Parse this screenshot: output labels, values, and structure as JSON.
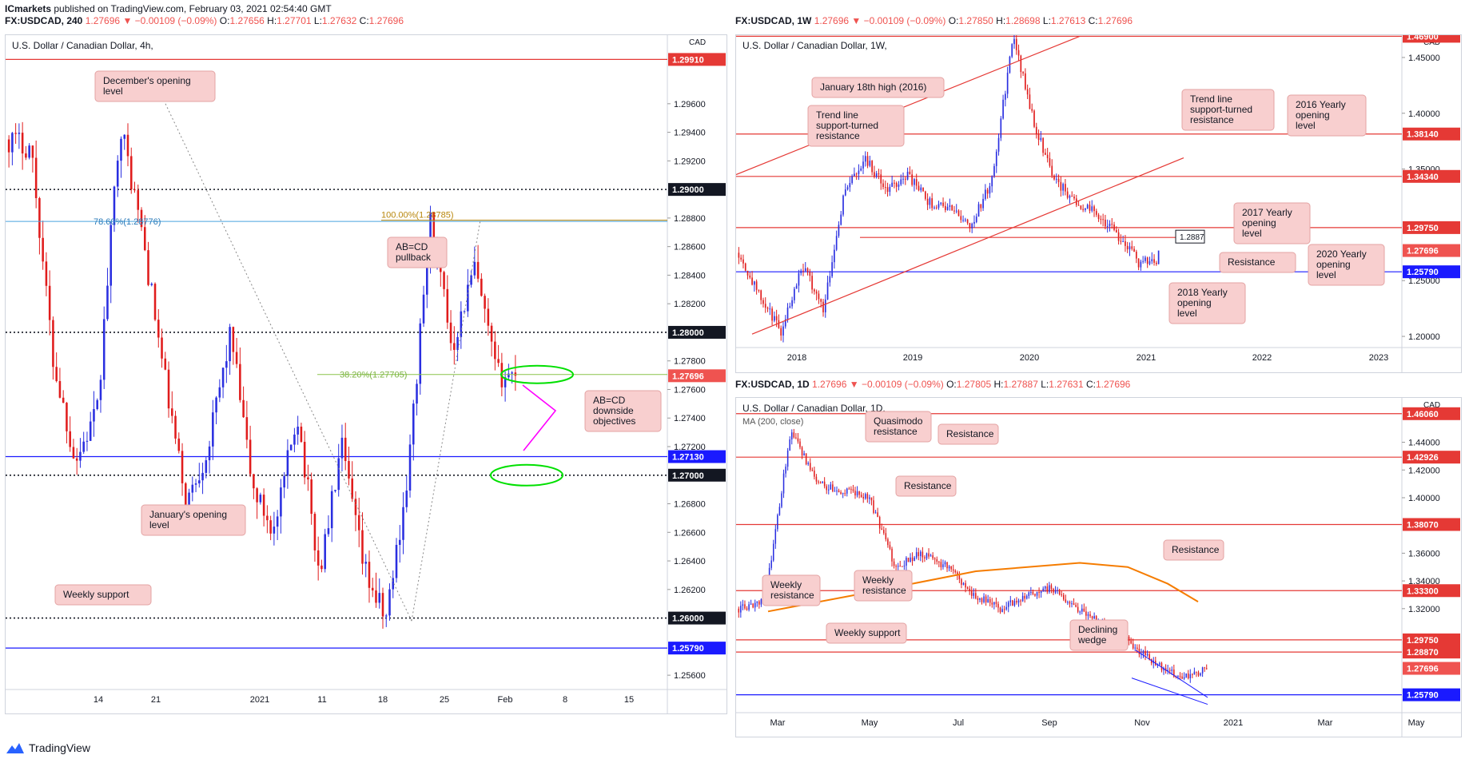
{
  "header": {
    "publisher": "ICmarkets",
    "published_text": "published on TradingView.com, February 03, 2021 02:54:40 GMT"
  },
  "footer": {
    "brand": "TradingView"
  },
  "colors": {
    "up": "#2a2fe0",
    "down": "#e01c1c",
    "level_red": "#e53935",
    "level_blue": "#1a1aff",
    "fib": "#8bc34a",
    "note_bg": "#f8cfcf",
    "ma": "#f57c00"
  },
  "chart_data": [
    {
      "type": "candlestick",
      "id": "h4",
      "symbol_line": {
        "symbol": "FX:USDCAD, 240",
        "price": "1.27696",
        "change": "−0.00109 (−0.09%)",
        "o_label": "O:",
        "o": "1.27656",
        "h_label": "H:",
        "h": "1.27701",
        "l_label": "L:",
        "l": "1.27632",
        "c_label": "C:",
        "c": "1.27696"
      },
      "title": "U.S. Dollar / Canadian Dollar, 4h,",
      "currency": "CAD",
      "ylim": [
        1.255,
        1.3008
      ],
      "y_ticks": [
        "1.29600",
        "1.29400",
        "1.29200",
        "1.28800",
        "1.28600",
        "1.28400",
        "1.28200",
        "1.27800",
        "1.27600",
        "1.27400",
        "1.27200",
        "1.26800",
        "1.26600",
        "1.26400",
        "1.26200",
        "1.25600"
      ],
      "x_ticks": [
        "14",
        "21",
        "2021",
        "11",
        "18",
        "25",
        "Feb",
        "8",
        "15"
      ],
      "levels": [
        {
          "value": 1.2991,
          "label": "1.29910",
          "style": "red"
        },
        {
          "value": 1.29,
          "label": "1.29000",
          "style": "dotted"
        },
        {
          "value": 1.28,
          "label": "1.28000",
          "style": "dotted"
        },
        {
          "value": 1.27696,
          "label": "1.27696",
          "style": "price"
        },
        {
          "value": 1.2713,
          "label": "1.27130",
          "style": "blue"
        },
        {
          "value": 1.27,
          "label": "1.27000",
          "style": "dotted"
        },
        {
          "value": 1.26,
          "label": "1.26000",
          "style": "dotted"
        },
        {
          "value": 1.2579,
          "label": "1.25790",
          "style": "blue"
        }
      ],
      "fib_labels": [
        {
          "text": "78.60%(1.28776)",
          "value": 1.28776
        },
        {
          "text": "100.00%(1.28785)",
          "value": 1.28785
        },
        {
          "text": "38.20%(1.27705)",
          "value": 1.27705
        }
      ],
      "annotations": [
        "December's opening level",
        "AB=CD pullback",
        "AB=CD downside objectives",
        "January's opening level",
        "Weekly support"
      ]
    },
    {
      "type": "candlestick",
      "id": "w1",
      "symbol_line": {
        "symbol": "FX:USDCAD, 1W",
        "price": "1.27696",
        "change": "−0.00109 (−0.09%)",
        "o_label": "O:",
        "o": "1.27850",
        "h_label": "H:",
        "h": "1.28698",
        "l_label": "L:",
        "l": "1.27613",
        "c_label": "C:",
        "c": "1.27696"
      },
      "title": "U.S. Dollar / Canadian Dollar, 1W,",
      "currency": "CAD",
      "ylim": [
        1.19,
        1.47
      ],
      "y_ticks": [
        "1.45000",
        "1.40000",
        "1.35000",
        "1.25000",
        "1.20000"
      ],
      "x_ticks": [
        "2018",
        "2019",
        "2020",
        "2021",
        "2022",
        "2023"
      ],
      "levels": [
        {
          "value": 1.469,
          "label": "1.46900",
          "style": "red"
        },
        {
          "value": 1.3814,
          "label": "1.38140",
          "style": "red"
        },
        {
          "value": 1.3434,
          "label": "1.34340",
          "style": "red"
        },
        {
          "value": 1.2975,
          "label": "1.29750",
          "style": "red"
        },
        {
          "value": 1.27696,
          "label": "1.27696",
          "style": "price"
        },
        {
          "value": 1.2579,
          "label": "1.25790",
          "style": "blue"
        }
      ],
      "box_label": "1.2887",
      "annotations": [
        "January 18th high (2016)",
        "Trend line support-turned resistance",
        "Trend line support-turned resistance",
        "2016 Yearly opening level",
        "2017 Yearly opening level",
        "Resistance",
        "2020 Yearly opening level",
        "2018 Yearly opening level"
      ]
    },
    {
      "type": "candlestick",
      "id": "d1",
      "symbol_line": {
        "symbol": "FX:USDCAD, 1D",
        "price": "1.27696",
        "change": "−0.00109 (−0.09%)",
        "o_label": "O:",
        "o": "1.27805",
        "h_label": "H:",
        "h": "1.27887",
        "l_label": "L:",
        "l": "1.27631",
        "c_label": "C:",
        "c": "1.27696"
      },
      "title": "U.S. Dollar / Canadian Dollar, 1D,",
      "indicator": "MA (200, close)",
      "currency": "CAD",
      "ylim": [
        1.245,
        1.472
      ],
      "y_ticks": [
        "1.44000",
        "1.42000",
        "1.40000",
        "1.36000",
        "1.34000",
        "1.32000"
      ],
      "x_ticks": [
        "Mar",
        "May",
        "Jul",
        "Sep",
        "Nov",
        "2021",
        "Mar",
        "May"
      ],
      "levels": [
        {
          "value": 1.4606,
          "label": "1.46060",
          "style": "red"
        },
        {
          "value": 1.42926,
          "label": "1.42926",
          "style": "red"
        },
        {
          "value": 1.3807,
          "label": "1.38070",
          "style": "red"
        },
        {
          "value": 1.333,
          "label": "1.33300",
          "style": "red"
        },
        {
          "value": 1.2975,
          "label": "1.29750",
          "style": "red"
        },
        {
          "value": 1.2887,
          "label": "1.28870",
          "style": "red"
        },
        {
          "value": 1.27696,
          "label": "1.27696",
          "style": "price"
        },
        {
          "value": 1.2579,
          "label": "1.25790",
          "style": "blue"
        }
      ],
      "annotations": [
        "Quasimodo resistance",
        "Resistance",
        "Resistance",
        "Resistance",
        "Weekly resistance",
        "Weekly resistance",
        "Weekly support",
        "Declining wedge"
      ]
    }
  ]
}
